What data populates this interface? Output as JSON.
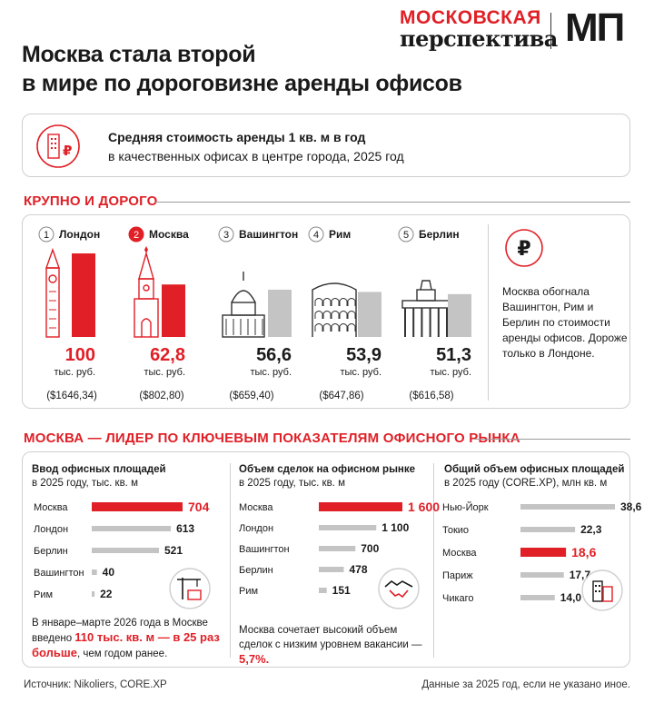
{
  "logo": {
    "top": "МОСКОВСКАЯ",
    "bottom": "перспектива",
    "mark": "МП"
  },
  "title": {
    "line1": "Москва стала второй",
    "line2": "в мире по дороговизне аренды офисов"
  },
  "subtitle": {
    "bold": "Средняя стоимость аренды 1 кв. м в год",
    "regular": "в качественных офисах в центре города, 2025 год"
  },
  "section1": {
    "heading": "КРУПНО И ДОРОГО"
  },
  "section2": {
    "heading": "МОСКВА — ЛИДЕР ПО КЛЮЧЕВЫМ ПОКАЗАТЕЛЯМ ОФИСНОГО РЫНКА"
  },
  "side_note": "Москва обогнала Вашингтон, Рим и Берлин по стоимости аренды офисов. Дороже только в Лондоне.",
  "panel1_note": {
    "pre": "В январе–марте 2026 года в Москве введено ",
    "hl": "110 тыс. кв. м — в 25 раз больше",
    "post": ", чем годом ранее."
  },
  "panel2_note": {
    "pre": "Москва сочетает высокий объем сделок с низким уровнем вакансии — ",
    "hl": "5,7%."
  },
  "footer": {
    "source": "Источник: Nikoliers, CORE.XP",
    "note": "Данные за 2025 год, если не указано иное."
  },
  "colors": {
    "accent": "#e01f26",
    "bar_gray": "#c4c4c4",
    "text": "#1a1a1a"
  },
  "chart_data": [
    {
      "type": "bar",
      "title": "Средняя стоимость аренды 1 кв. м в год",
      "unit": "тыс. руб.",
      "categories": [
        "Лондон",
        "Москва",
        "Вашингтон",
        "Рим",
        "Берлин"
      ],
      "ranks": [
        "1",
        "2",
        "3",
        "4",
        "5"
      ],
      "values": [
        100,
        62.8,
        56.6,
        53.9,
        51.3
      ],
      "value_labels": [
        "100",
        "62,8",
        "56,6",
        "53,9",
        "51,3"
      ],
      "usd_labels": [
        "($1646,34)",
        "($802,80)",
        "($659,40)",
        "($647,86)",
        "($616,58)"
      ],
      "highlight": [
        "Лондон",
        "Москва"
      ],
      "icons": [
        "big-ben-icon",
        "kremlin-tower-icon",
        "capitol-icon",
        "colosseum-icon",
        "brandenburg-gate-icon"
      ]
    },
    {
      "type": "bar",
      "orientation": "horizontal",
      "title_line1": "Ввод офисных площадей",
      "title_line2": "в 2025 году, тыс. кв. м",
      "categories": [
        "Москва",
        "Лондон",
        "Берлин",
        "Вашингтон",
        "Рим"
      ],
      "values": [
        704,
        613,
        521,
        40,
        22
      ],
      "value_labels": [
        "704",
        "613",
        "521",
        "40",
        "22"
      ],
      "highlight": [
        "Москва"
      ],
      "xlim": [
        0,
        704
      ]
    },
    {
      "type": "bar",
      "orientation": "horizontal",
      "title_line1": "Объем сделок на офисном рынке",
      "title_line2": "в 2025 году, тыс. кв. м",
      "categories": [
        "Москва",
        "Лондон",
        "Вашингтон",
        "Берлин",
        "Рим"
      ],
      "values": [
        1600,
        1100,
        700,
        478,
        151
      ],
      "value_labels": [
        "1 600",
        "1 100",
        "700",
        "478",
        "151"
      ],
      "highlight": [
        "Москва"
      ],
      "xlim": [
        0,
        1600
      ]
    },
    {
      "type": "bar",
      "orientation": "horizontal",
      "title_line1": "Общий объем офисных площадей",
      "title_line2": "в 2025 году (CORE.XP), млн кв. м",
      "categories": [
        "Нью-Йорк",
        "Токио",
        "Москва",
        "Париж",
        "Чикаго"
      ],
      "values": [
        38.6,
        22.3,
        18.6,
        17.7,
        14.0
      ],
      "value_labels": [
        "38,6",
        "22,3",
        "18,6",
        "17,7",
        "14,0"
      ],
      "highlight": [
        "Москва"
      ],
      "xlim": [
        0,
        38.6
      ]
    }
  ]
}
